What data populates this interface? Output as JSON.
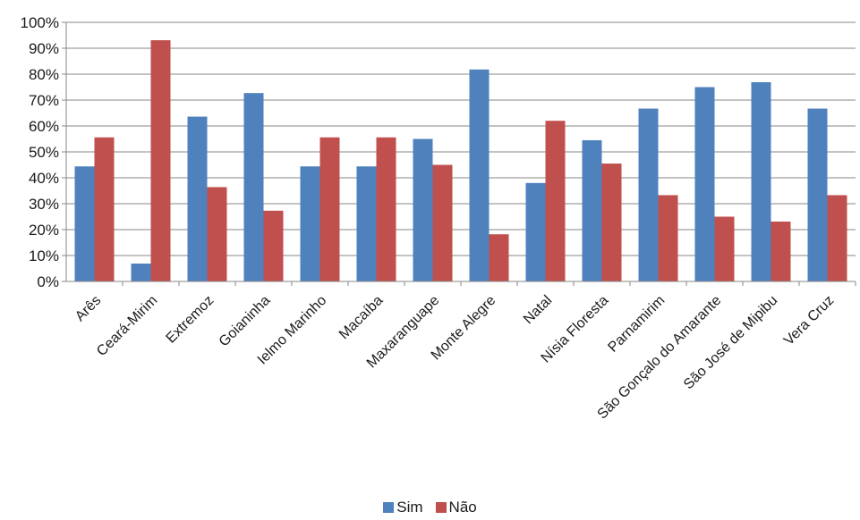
{
  "chart_data": {
    "type": "bar",
    "categories": [
      "Arês",
      "Ceará-Mirim",
      "Extremoz",
      "Goianinha",
      "Ielmo Marinho",
      "Macaíba",
      "Maxaranguape",
      "Monte Alegre",
      "Natal",
      "Nísia Floresta",
      "Parnamirim",
      "São Gonçalo do Amarante",
      "São José de Mipibu",
      "Vera Cruz"
    ],
    "series": [
      {
        "name": "Sim",
        "color": "#4F81BD",
        "values": [
          44.4,
          6.9,
          63.6,
          72.7,
          44.4,
          44.4,
          55.0,
          81.8,
          38.0,
          54.5,
          66.7,
          75.0,
          76.9,
          66.7
        ]
      },
      {
        "name": "Não",
        "color": "#C0504D",
        "values": [
          55.6,
          93.1,
          36.4,
          27.3,
          55.6,
          55.6,
          45.0,
          18.2,
          62.0,
          45.5,
          33.3,
          25.0,
          23.1,
          33.3
        ]
      }
    ],
    "yticks": [
      "0%",
      "10%",
      "20%",
      "30%",
      "40%",
      "50%",
      "60%",
      "70%",
      "80%",
      "90%",
      "100%"
    ],
    "ylim": [
      0,
      100
    ],
    "grid": true,
    "legend_position": "bottom"
  }
}
